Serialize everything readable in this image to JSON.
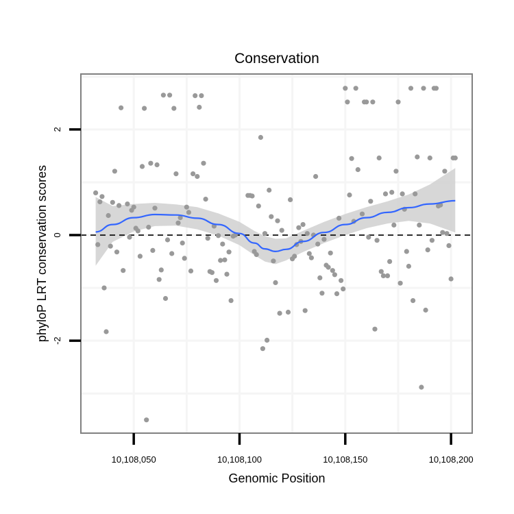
{
  "chart_data": {
    "type": "scatter",
    "title": "Conservation",
    "xlabel": "Genomic Position",
    "ylabel": "phyloP LRT conservation scores",
    "xlim": [
      10108025,
      10108210
    ],
    "ylim": [
      -3.75,
      3.05
    ],
    "x_ticks": [
      10108050,
      10108100,
      10108150,
      10108200
    ],
    "x_tick_labels": [
      "10,108,050",
      "10,108,100",
      "10,108,150",
      "10,108,200"
    ],
    "y_ticks": [
      -2,
      0,
      2
    ],
    "y_tick_labels": [
      "-2",
      "0",
      "2"
    ],
    "grid": true,
    "reference_line": {
      "y": 0,
      "style": "dashed"
    },
    "colors": {
      "points": "#999999",
      "smooth": "#3366FF",
      "ribbon": "#D3D3D3",
      "panel_border": "#808080",
      "grid": "#F5F5F5"
    },
    "points": [
      {
        "x": 10108032,
        "y": 0.8
      },
      {
        "x": 10108033,
        "y": -0.18
      },
      {
        "x": 10108034,
        "y": 0.63
      },
      {
        "x": 10108035,
        "y": 0.73
      },
      {
        "x": 10108036,
        "y": -1.0
      },
      {
        "x": 10108037,
        "y": -1.83
      },
      {
        "x": 10108038,
        "y": 0.37
      },
      {
        "x": 10108039,
        "y": -0.21
      },
      {
        "x": 10108040,
        "y": 0.62
      },
      {
        "x": 10108041,
        "y": 1.21
      },
      {
        "x": 10108042,
        "y": -0.32
      },
      {
        "x": 10108043,
        "y": 0.56
      },
      {
        "x": 10108044,
        "y": 2.41
      },
      {
        "x": 10108045,
        "y": -0.67
      },
      {
        "x": 10108047,
        "y": 0.59
      },
      {
        "x": 10108048,
        "y": -0.04
      },
      {
        "x": 10108049,
        "y": 0.47
      },
      {
        "x": 10108050,
        "y": 0.53
      },
      {
        "x": 10108051,
        "y": 0.13
      },
      {
        "x": 10108052,
        "y": 0.08
      },
      {
        "x": 10108053,
        "y": -0.4
      },
      {
        "x": 10108054,
        "y": 1.3
      },
      {
        "x": 10108055,
        "y": 2.4
      },
      {
        "x": 10108056,
        "y": -3.5
      },
      {
        "x": 10108057,
        "y": 0.15
      },
      {
        "x": 10108058,
        "y": 1.36
      },
      {
        "x": 10108059,
        "y": -0.29
      },
      {
        "x": 10108060,
        "y": 0.51
      },
      {
        "x": 10108061,
        "y": 1.33
      },
      {
        "x": 10108062,
        "y": -0.84
      },
      {
        "x": 10108063,
        "y": -0.66
      },
      {
        "x": 10108064,
        "y": 2.65
      },
      {
        "x": 10108065,
        "y": -1.2
      },
      {
        "x": 10108066,
        "y": -0.09
      },
      {
        "x": 10108067,
        "y": 2.65
      },
      {
        "x": 10108068,
        "y": -0.35
      },
      {
        "x": 10108069,
        "y": 2.4
      },
      {
        "x": 10108070,
        "y": 1.16
      },
      {
        "x": 10108071,
        "y": 0.23
      },
      {
        "x": 10108072,
        "y": 0.33
      },
      {
        "x": 10108073,
        "y": -0.15
      },
      {
        "x": 10108074,
        "y": -0.44
      },
      {
        "x": 10108075,
        "y": 0.53
      },
      {
        "x": 10108076,
        "y": 0.43
      },
      {
        "x": 10108077,
        "y": -0.68
      },
      {
        "x": 10108078,
        "y": 1.16
      },
      {
        "x": 10108079,
        "y": 2.64
      },
      {
        "x": 10108080,
        "y": 1.11
      },
      {
        "x": 10108081,
        "y": 2.42
      },
      {
        "x": 10108082,
        "y": 2.64
      },
      {
        "x": 10108083,
        "y": 1.36
      },
      {
        "x": 10108084,
        "y": 0.68
      },
      {
        "x": 10108085,
        "y": -0.06
      },
      {
        "x": 10108086,
        "y": -0.69
      },
      {
        "x": 10108087,
        "y": -0.71
      },
      {
        "x": 10108088,
        "y": 0.17
      },
      {
        "x": 10108089,
        "y": -0.86
      },
      {
        "x": 10108090,
        "y": -0.01
      },
      {
        "x": 10108091,
        "y": -0.48
      },
      {
        "x": 10108092,
        "y": -0.17
      },
      {
        "x": 10108093,
        "y": -0.47
      },
      {
        "x": 10108094,
        "y": -0.74
      },
      {
        "x": 10108095,
        "y": -0.32
      },
      {
        "x": 10108096,
        "y": -1.24
      },
      {
        "x": 10108097,
        "y": -0.02
      },
      {
        "x": 10108098,
        "y": 0.0
      },
      {
        "x": 10108104,
        "y": 0.75
      },
      {
        "x": 10108105,
        "y": 0.75
      },
      {
        "x": 10108106,
        "y": 0.74
      },
      {
        "x": 10108107,
        "y": -0.31
      },
      {
        "x": 10108108,
        "y": -0.37
      },
      {
        "x": 10108109,
        "y": 0.55
      },
      {
        "x": 10108110,
        "y": 1.85
      },
      {
        "x": 10108111,
        "y": -2.15
      },
      {
        "x": 10108112,
        "y": 0.03
      },
      {
        "x": 10108113,
        "y": -1.99
      },
      {
        "x": 10108114,
        "y": 0.85
      },
      {
        "x": 10108115,
        "y": 0.35
      },
      {
        "x": 10108116,
        "y": -0.49
      },
      {
        "x": 10108117,
        "y": -0.9
      },
      {
        "x": 10108118,
        "y": 0.27
      },
      {
        "x": 10108119,
        "y": -1.48
      },
      {
        "x": 10108120,
        "y": 0.09
      },
      {
        "x": 10108123,
        "y": -1.46
      },
      {
        "x": 10108124,
        "y": 0.67
      },
      {
        "x": 10108125,
        "y": -0.45
      },
      {
        "x": 10108126,
        "y": -0.4
      },
      {
        "x": 10108127,
        "y": -0.18
      },
      {
        "x": 10108128,
        "y": 0.14
      },
      {
        "x": 10108129,
        "y": -0.12
      },
      {
        "x": 10108130,
        "y": 0.2
      },
      {
        "x": 10108131,
        "y": -1.43
      },
      {
        "x": 10108132,
        "y": 0.03
      },
      {
        "x": 10108133,
        "y": -0.35
      },
      {
        "x": 10108134,
        "y": -0.43
      },
      {
        "x": 10108135,
        "y": 0.0
      },
      {
        "x": 10108136,
        "y": 1.11
      },
      {
        "x": 10108137,
        "y": -0.17
      },
      {
        "x": 10108138,
        "y": -0.81
      },
      {
        "x": 10108139,
        "y": -1.1
      },
      {
        "x": 10108140,
        "y": -0.08
      },
      {
        "x": 10108141,
        "y": -0.57
      },
      {
        "x": 10108142,
        "y": -0.61
      },
      {
        "x": 10108143,
        "y": -0.34
      },
      {
        "x": 10108144,
        "y": -0.67
      },
      {
        "x": 10108145,
        "y": -0.75
      },
      {
        "x": 10108146,
        "y": -1.11
      },
      {
        "x": 10108147,
        "y": 0.32
      },
      {
        "x": 10108148,
        "y": -0.86
      },
      {
        "x": 10108149,
        "y": -1.02
      },
      {
        "x": 10108150,
        "y": 2.78
      },
      {
        "x": 10108151,
        "y": 2.52
      },
      {
        "x": 10108152,
        "y": 0.76
      },
      {
        "x": 10108153,
        "y": 1.45
      },
      {
        "x": 10108154,
        "y": 0.26
      },
      {
        "x": 10108155,
        "y": 2.78
      },
      {
        "x": 10108156,
        "y": 1.24
      },
      {
        "x": 10108158,
        "y": 0.4
      },
      {
        "x": 10108159,
        "y": 2.52
      },
      {
        "x": 10108160,
        "y": 2.52
      },
      {
        "x": 10108161,
        "y": -0.04
      },
      {
        "x": 10108162,
        "y": 0.64
      },
      {
        "x": 10108163,
        "y": 2.52
      },
      {
        "x": 10108164,
        "y": -1.78
      },
      {
        "x": 10108165,
        "y": -0.1
      },
      {
        "x": 10108166,
        "y": 1.46
      },
      {
        "x": 10108167,
        "y": -0.69
      },
      {
        "x": 10108168,
        "y": -0.77
      },
      {
        "x": 10108169,
        "y": 0.78
      },
      {
        "x": 10108170,
        "y": -0.77
      },
      {
        "x": 10108171,
        "y": -0.5
      },
      {
        "x": 10108172,
        "y": 0.81
      },
      {
        "x": 10108173,
        "y": 0.19
      },
      {
        "x": 10108174,
        "y": 1.21
      },
      {
        "x": 10108175,
        "y": 2.52
      },
      {
        "x": 10108176,
        "y": -0.91
      },
      {
        "x": 10108177,
        "y": 0.78
      },
      {
        "x": 10108178,
        "y": 0.49
      },
      {
        "x": 10108179,
        "y": -0.31
      },
      {
        "x": 10108180,
        "y": -0.59
      },
      {
        "x": 10108181,
        "y": 2.78
      },
      {
        "x": 10108182,
        "y": -1.24
      },
      {
        "x": 10108183,
        "y": 0.78
      },
      {
        "x": 10108184,
        "y": 1.48
      },
      {
        "x": 10108185,
        "y": 0.19
      },
      {
        "x": 10108186,
        "y": -2.88
      },
      {
        "x": 10108187,
        "y": 2.78
      },
      {
        "x": 10108188,
        "y": -1.42
      },
      {
        "x": 10108189,
        "y": -0.28
      },
      {
        "x": 10108190,
        "y": 1.46
      },
      {
        "x": 10108191,
        "y": -0.1
      },
      {
        "x": 10108192,
        "y": 2.78
      },
      {
        "x": 10108193,
        "y": 2.78
      },
      {
        "x": 10108194,
        "y": 0.55
      },
      {
        "x": 10108195,
        "y": 0.57
      },
      {
        "x": 10108196,
        "y": 0.05
      },
      {
        "x": 10108197,
        "y": 1.21
      },
      {
        "x": 10108198,
        "y": 0.03
      },
      {
        "x": 10108199,
        "y": -0.2
      },
      {
        "x": 10108200,
        "y": -0.83
      },
      {
        "x": 10108201,
        "y": 1.46
      },
      {
        "x": 10108202,
        "y": 1.46
      }
    ],
    "smooth": [
      {
        "x": 10108032,
        "y": 0.06,
        "lo": -0.58,
        "hi": 0.72
      },
      {
        "x": 10108040,
        "y": 0.2,
        "lo": -0.13,
        "hi": 0.55
      },
      {
        "x": 10108050,
        "y": 0.33,
        "lo": 0.07,
        "hi": 0.59
      },
      {
        "x": 10108060,
        "y": 0.39,
        "lo": 0.17,
        "hi": 0.61
      },
      {
        "x": 10108070,
        "y": 0.38,
        "lo": 0.18,
        "hi": 0.58
      },
      {
        "x": 10108080,
        "y": 0.32,
        "lo": 0.11,
        "hi": 0.53
      },
      {
        "x": 10108090,
        "y": 0.2,
        "lo": -0.01,
        "hi": 0.41
      },
      {
        "x": 10108100,
        "y": 0.03,
        "lo": -0.19,
        "hi": 0.25
      },
      {
        "x": 10108107,
        "y": -0.15,
        "lo": -0.38,
        "hi": 0.08
      },
      {
        "x": 10108112,
        "y": -0.26,
        "lo": -0.5,
        "hi": -0.02
      },
      {
        "x": 10108117,
        "y": -0.31,
        "lo": -0.55,
        "hi": -0.07
      },
      {
        "x": 10108122,
        "y": -0.27,
        "lo": -0.48,
        "hi": -0.06
      },
      {
        "x": 10108130,
        "y": -0.12,
        "lo": -0.32,
        "hi": 0.08
      },
      {
        "x": 10108140,
        "y": 0.05,
        "lo": -0.15,
        "hi": 0.25
      },
      {
        "x": 10108150,
        "y": 0.2,
        "lo": 0.0,
        "hi": 0.4
      },
      {
        "x": 10108160,
        "y": 0.33,
        "lo": 0.13,
        "hi": 0.53
      },
      {
        "x": 10108170,
        "y": 0.43,
        "lo": 0.22,
        "hi": 0.64
      },
      {
        "x": 10108180,
        "y": 0.52,
        "lo": 0.27,
        "hi": 0.77
      },
      {
        "x": 10108190,
        "y": 0.59,
        "lo": 0.22,
        "hi": 0.96
      },
      {
        "x": 10108202,
        "y": 0.65,
        "lo": 0.05,
        "hi": 1.27
      }
    ]
  }
}
